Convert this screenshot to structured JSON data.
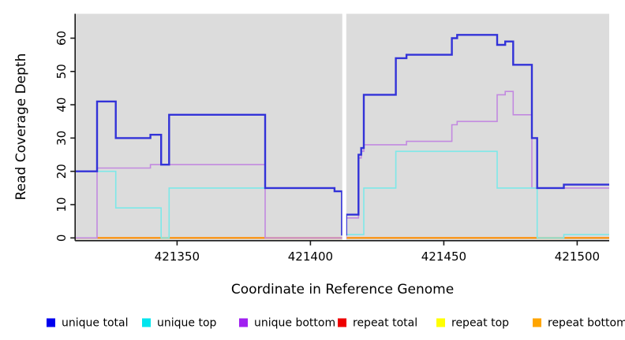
{
  "figure": {
    "xlabel": "Coordinate in Reference Genome",
    "ylabel": "Read Coverage Depth"
  },
  "chart_data": {
    "type": "line",
    "subtype": "step",
    "title": "",
    "xlabel": "Coordinate in Reference Genome",
    "ylabel": "Read Coverage Depth",
    "xlim": [
      421312,
      421512
    ],
    "ylim": [
      0,
      67
    ],
    "x_ticks": [
      421350,
      421400,
      421450,
      421500
    ],
    "y_ticks": [
      0,
      10,
      20,
      30,
      40,
      50,
      60
    ],
    "grid": false,
    "panel_bg": "#dcdcdc",
    "gap_band": {
      "x_from": 421411.9,
      "x_to": 421413.4,
      "color": "#ffffff"
    },
    "legend_position": "bottom",
    "series": [
      {
        "name": "repeat total",
        "color": "#e04040",
        "legend_color": "#ee0000",
        "width": 1.6,
        "points": [
          [
            421312,
            0
          ],
          [
            421512,
            0
          ]
        ]
      },
      {
        "name": "repeat top",
        "color": "#ffff00",
        "legend_color": "#ffff00",
        "width": 1.6,
        "points": [
          [
            421312,
            0
          ],
          [
            421512,
            0
          ]
        ]
      },
      {
        "name": "repeat bottom",
        "color": "#ff8c00",
        "legend_color": "#ffa500",
        "width": 2.0,
        "points": [
          [
            421320,
            0
          ],
          [
            421512,
            0
          ]
        ]
      },
      {
        "name": "unique bottom",
        "color": "#c289e0",
        "legend_color": "#a020f0",
        "width": 1.6,
        "points": [
          [
            421312,
            0
          ],
          [
            421320,
            21
          ],
          [
            421340,
            22
          ],
          [
            421383,
            0
          ],
          [
            421413.4,
            6
          ],
          [
            421418,
            24
          ],
          [
            421419,
            26
          ],
          [
            421420,
            28
          ],
          [
            421436,
            29
          ],
          [
            421453,
            34
          ],
          [
            421455,
            35
          ],
          [
            421470,
            43
          ],
          [
            421473,
            44
          ],
          [
            421476,
            37
          ],
          [
            421483,
            15
          ],
          [
            421512,
            15
          ]
        ]
      },
      {
        "name": "unique top",
        "color": "#7de8e8",
        "legend_color": "#00e5ee",
        "width": 1.6,
        "points": [
          [
            421312,
            20
          ],
          [
            421327,
            9
          ],
          [
            421344,
            0
          ],
          [
            421347,
            15
          ],
          [
            421409,
            14
          ],
          [
            421411.8,
            1
          ],
          [
            421420,
            15
          ],
          [
            421432,
            26
          ],
          [
            421470,
            15
          ],
          [
            421485,
            0
          ],
          [
            421495,
            1
          ],
          [
            421512,
            1
          ]
        ]
      },
      {
        "name": "unique total",
        "color": "#3232d8",
        "legend_color": "#0000ee",
        "width": 2.4,
        "points": [
          [
            421312,
            20
          ],
          [
            421320,
            41
          ],
          [
            421327,
            30
          ],
          [
            421340,
            31
          ],
          [
            421344,
            22
          ],
          [
            421347,
            37
          ],
          [
            421383,
            15
          ],
          [
            421409,
            14
          ],
          [
            421411.8,
            1
          ],
          [
            421413.4,
            7
          ],
          [
            421418,
            25
          ],
          [
            421419,
            27
          ],
          [
            421420,
            43
          ],
          [
            421432,
            54
          ],
          [
            421436,
            55
          ],
          [
            421453,
            60
          ],
          [
            421455,
            61
          ],
          [
            421470,
            58
          ],
          [
            421473,
            59
          ],
          [
            421476,
            52
          ],
          [
            421483,
            30
          ],
          [
            421485,
            15
          ],
          [
            421495,
            16
          ],
          [
            421512,
            16
          ]
        ]
      }
    ],
    "legend": [
      {
        "label": "unique total",
        "color": "#0000ee"
      },
      {
        "label": "unique top",
        "color": "#00e5ee"
      },
      {
        "label": "unique bottom",
        "color": "#a020f0"
      },
      {
        "label": "repeat total",
        "color": "#ee0000"
      },
      {
        "label": "repeat top",
        "color": "#ffff00"
      },
      {
        "label": "repeat bottom",
        "color": "#ffa500"
      }
    ]
  }
}
